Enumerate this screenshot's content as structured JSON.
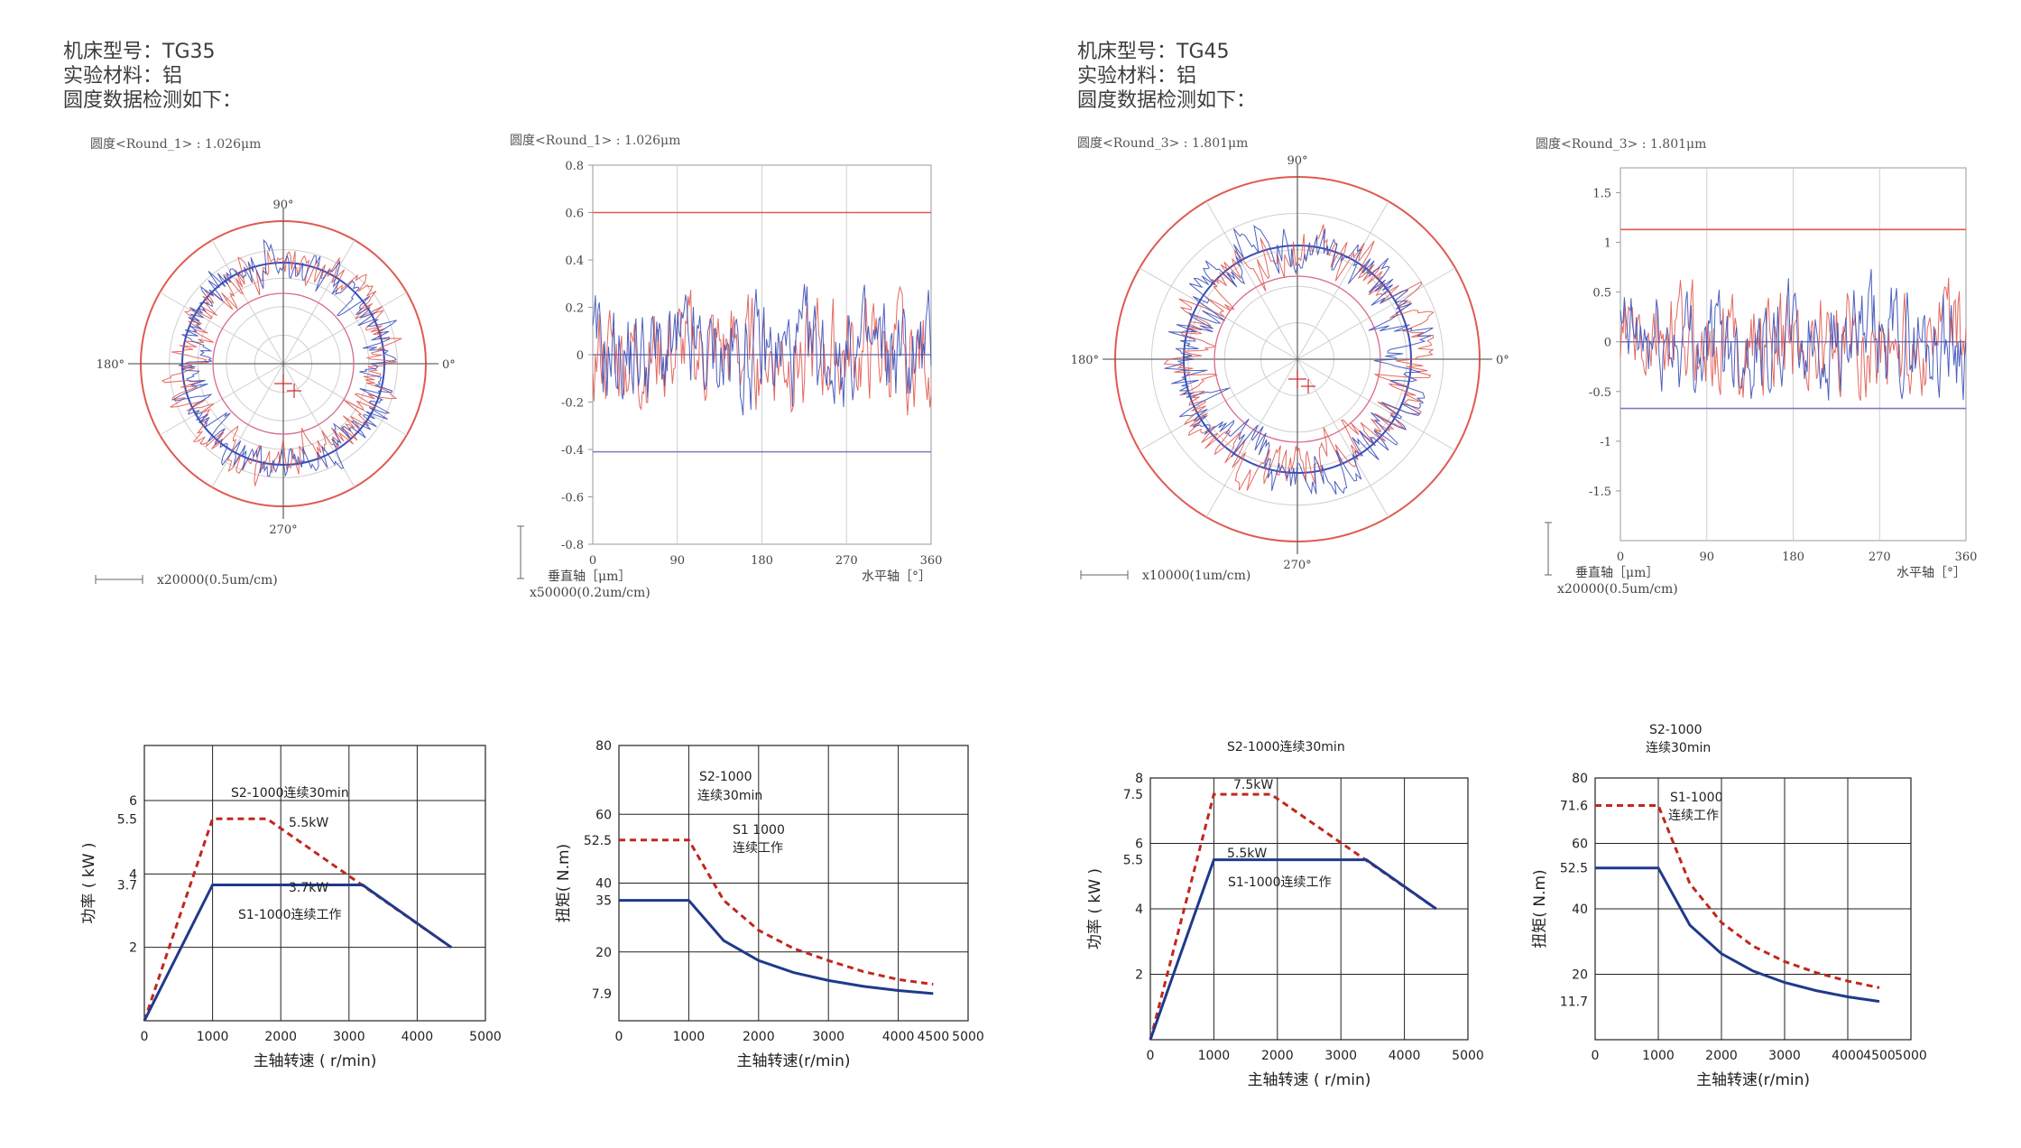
{
  "left_header": {
    "machine_label": "机床型号：",
    "machine_value": "TG35",
    "material_label": "实验材料：",
    "material_value": "铝",
    "roundness_line": "圆度数据检测如下："
  },
  "right_header": {
    "machine_label": "机床型号：",
    "machine_value": "TG45",
    "material_label": "实验材料：",
    "material_value": "铝",
    "roundness_line": "圆度数据检测如下："
  },
  "colors": {
    "red": "#e05a50",
    "blue": "#3b4fb8",
    "dark_red": "#c0281e",
    "navy": "#1f3a8a",
    "grid": "#cfcfcf"
  },
  "chart_data": [
    {
      "type": "polar",
      "id": "polar-tg35",
      "title": "圆度<Round_1> : 1.026μm",
      "angle_labels": [
        "90°",
        "180°",
        "0°",
        "270°"
      ],
      "scale_label": "x20000(0.5um/cm)",
      "series": [
        {
          "color": "red",
          "seed": 11
        },
        {
          "color": "blue",
          "seed": 23
        }
      ]
    },
    {
      "type": "line",
      "id": "linear-tg35",
      "title": "圆度<Round_1> : 1.026μm",
      "xlim": [
        0,
        360
      ],
      "ylim": [
        -0.8,
        0.8
      ],
      "xticks": [
        "0",
        "90",
        "180",
        "270",
        "360"
      ],
      "yticks": [
        "0.8",
        "0.6",
        "0.4",
        "0.2",
        "0",
        "-0.2",
        "-0.4",
        "-0.6",
        "-0.8"
      ],
      "xlabel": "水平轴［°］",
      "ylabel": "垂直轴［μm］",
      "scale_label": "x50000(0.2um/cm)",
      "upper_limit": 0.6,
      "lower_limit": -0.41
    },
    {
      "type": "polar",
      "id": "polar-tg45",
      "title": "圆度<Round_3> : 1.801μm",
      "angle_labels": [
        "90°",
        "180°",
        "0°",
        "270°"
      ],
      "scale_label": "x10000(1um/cm)",
      "series": [
        {
          "color": "red",
          "seed": 37
        },
        {
          "color": "blue",
          "seed": 51
        }
      ]
    },
    {
      "type": "line",
      "id": "linear-tg45",
      "title": "圆度<Round_3> : 1.801μm",
      "xlim": [
        0,
        360
      ],
      "ylim": [
        -2.0,
        1.75
      ],
      "xticks": [
        "0",
        "90",
        "180",
        "270",
        "360"
      ],
      "yticks": [
        "1.5",
        "1",
        "0.5",
        "0",
        "-0.5",
        "-1",
        "-1.5"
      ],
      "xlabel": "水平轴［°］",
      "ylabel": "垂直轴［μm］",
      "scale_label": "x20000(0.5um/cm)",
      "upper_limit": 1.13,
      "lower_limit": -0.67
    },
    {
      "type": "line",
      "id": "power-tg35",
      "xlabel": "主轴转速 ( r/min)",
      "ylabel": "功率 ( kW )",
      "xlim": [
        0,
        5000
      ],
      "ylim": [
        0,
        7.5
      ],
      "xticks": [
        "0",
        "1000",
        "2000",
        "3000",
        "4000",
        "5000"
      ],
      "yticks": [
        "6",
        "5.5",
        "4",
        "3.7",
        "2"
      ],
      "series": [
        {
          "name": "S2-1000连续30min",
          "style": "dashed",
          "x": [
            0,
            1000,
            1800,
            4500
          ],
          "y": [
            0,
            5.5,
            5.5,
            2.0
          ]
        },
        {
          "name": "S1-1000连续工作",
          "style": "solid",
          "x": [
            0,
            1000,
            3200,
            4500
          ],
          "y": [
            0,
            3.7,
            3.7,
            2.0
          ]
        }
      ],
      "annotations": [
        "S2-1000连续30min",
        "5.5kW",
        "3.7kW",
        "S1-1000连续工作"
      ]
    },
    {
      "type": "line",
      "id": "torque-tg35",
      "xlabel": "主轴转速(r/min)",
      "ylabel": "扭矩( N.m)",
      "xlim": [
        0,
        5000
      ],
      "ylim": [
        0,
        80
      ],
      "xticks": [
        "0",
        "1000",
        "2000",
        "3000",
        "4000",
        "4500",
        "5000"
      ],
      "yticks": [
        "80",
        "60",
        "52.5",
        "40",
        "35",
        "20",
        "7.9"
      ],
      "series": [
        {
          "name": "S2-1000 连续30min",
          "style": "dashed",
          "x": [
            0,
            1000,
            1500,
            2000,
            2500,
            3000,
            3500,
            4000,
            4500
          ],
          "y": [
            52.5,
            52.5,
            35.0,
            26.3,
            21.0,
            17.5,
            14.3,
            12.0,
            10.6
          ]
        },
        {
          "name": "S1 1000 连续工作",
          "style": "solid",
          "x": [
            0,
            1000,
            1500,
            2000,
            2500,
            3000,
            3500,
            4000,
            4500
          ],
          "y": [
            35,
            35,
            23.3,
            17.5,
            14.0,
            11.7,
            10.0,
            8.8,
            7.9
          ]
        }
      ],
      "annotations": [
        "S2-1000",
        "连续30min",
        "S1 1000",
        "连续工作"
      ]
    },
    {
      "type": "line",
      "id": "power-tg45",
      "xlabel": "主轴转速 ( r/min)",
      "ylabel": "功率 ( kW )",
      "xlim": [
        0,
        5000
      ],
      "ylim": [
        0,
        8
      ],
      "xticks": [
        "0",
        "1000",
        "2000",
        "3000",
        "4000",
        "5000"
      ],
      "yticks": [
        "8",
        "7.5",
        "6",
        "5.5",
        "4",
        "2"
      ],
      "series": [
        {
          "name": "S2-1000连续30min",
          "style": "dashed",
          "x": [
            0,
            1000,
            1900,
            4500
          ],
          "y": [
            0,
            7.5,
            7.5,
            4.0
          ]
        },
        {
          "name": "S1-1000连续工作",
          "style": "solid",
          "x": [
            0,
            1000,
            3400,
            4500
          ],
          "y": [
            0,
            5.5,
            5.5,
            4.0
          ]
        }
      ],
      "annotations": [
        "S2-1000连续30min",
        "7.5kW",
        "5.5kW",
        "S1-1000连续工作"
      ]
    },
    {
      "type": "line",
      "id": "torque-tg45",
      "xlabel": "主轴转速(r/min)",
      "ylabel": "扭矩( N.m)",
      "xlim": [
        0,
        5000
      ],
      "ylim": [
        0,
        80
      ],
      "xticks": [
        "0",
        "1000",
        "2000",
        "3000",
        "4000",
        "4500",
        "5000"
      ],
      "yticks": [
        "80",
        "71.6",
        "60",
        "52.5",
        "40",
        "20",
        "11.7"
      ],
      "series": [
        {
          "name": "S2-1000 连续30min",
          "style": "dashed",
          "x": [
            0,
            1000,
            1500,
            2000,
            2500,
            3000,
            3500,
            4000,
            4500
          ],
          "y": [
            71.6,
            71.6,
            47.7,
            35.8,
            28.6,
            23.9,
            20.5,
            17.9,
            15.9
          ]
        },
        {
          "name": "S1-1000 连续工作",
          "style": "solid",
          "x": [
            0,
            1000,
            1500,
            2000,
            2500,
            3000,
            3500,
            4000,
            4500
          ],
          "y": [
            52.5,
            52.5,
            35.0,
            26.3,
            21.0,
            17.5,
            15.0,
            13.1,
            11.7
          ]
        }
      ],
      "annotations": [
        "S2-1000",
        "连续30min",
        "S1-1000",
        "连续工作"
      ]
    }
  ]
}
